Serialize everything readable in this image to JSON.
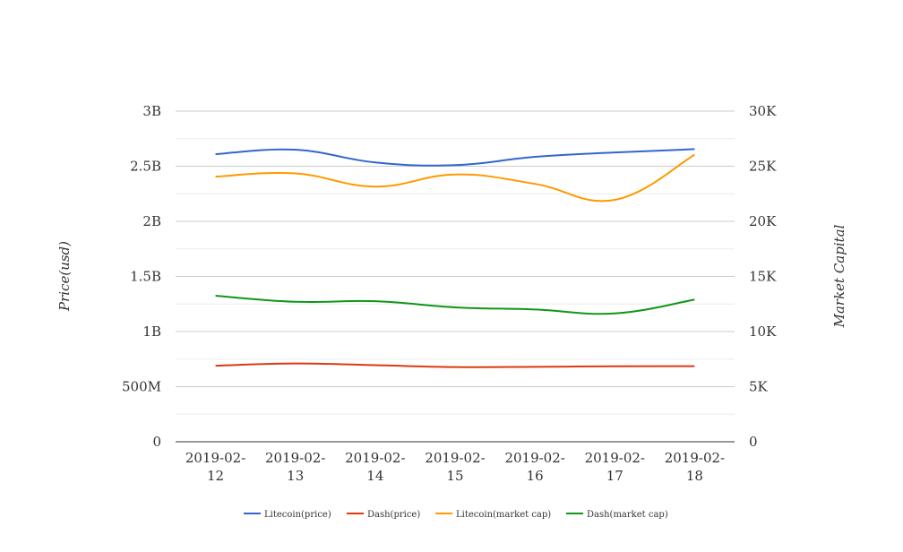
{
  "chart_data": {
    "type": "line",
    "title": "",
    "categories": [
      "2019-02-12",
      "2019-02-13",
      "2019-02-14",
      "2019-02-15",
      "2019-02-16",
      "2019-02-17",
      "2019-02-18"
    ],
    "category_lines": [
      [
        "2019-02-",
        "12"
      ],
      [
        "2019-02-",
        "13"
      ],
      [
        "2019-02-",
        "14"
      ],
      [
        "2019-02-",
        "15"
      ],
      [
        "2019-02-",
        "16"
      ],
      [
        "2019-02-",
        "17"
      ],
      [
        "2019-02-",
        "18"
      ]
    ],
    "y_left": {
      "label": "Price(usd)",
      "min": 0,
      "max": 3000000000,
      "ticks": [
        0,
        500000000,
        1000000000,
        1500000000,
        2000000000,
        2500000000,
        3000000000
      ],
      "tick_labels": [
        "0",
        "500M",
        "1B",
        "1.5B",
        "2B",
        "2.5B",
        "3B"
      ]
    },
    "y_right": {
      "label": "Market Capital",
      "min": 0,
      "max": 30000,
      "ticks": [
        0,
        5000,
        10000,
        15000,
        20000,
        25000,
        30000
      ],
      "tick_labels": [
        "0",
        "5K",
        "10K",
        "15K",
        "20K",
        "25K",
        "30K"
      ]
    },
    "series": [
      {
        "name": "Litecoin(price)",
        "axis": "left",
        "color": "#3366cc",
        "values": [
          2610000000,
          2650000000,
          2535000000,
          2510000000,
          2585000000,
          2625000000,
          2655000000
        ]
      },
      {
        "name": "Dash(price)",
        "axis": "left",
        "color": "#dc3912",
        "values": [
          690000000,
          710000000,
          695000000,
          678000000,
          680000000,
          685000000,
          686000000
        ]
      },
      {
        "name": "Litecoin(market cap)",
        "axis": "left",
        "color": "#ff9900",
        "values": [
          2405000000,
          2435000000,
          2315000000,
          2425000000,
          2340000000,
          2195000000,
          2605000000
        ]
      },
      {
        "name": "Dash(market cap)",
        "axis": "left",
        "color": "#109618",
        "values": [
          1325000000,
          1270000000,
          1275000000,
          1220000000,
          1200000000,
          1165000000,
          1290000000
        ]
      }
    ],
    "grid": true,
    "legend_position": "bottom"
  }
}
